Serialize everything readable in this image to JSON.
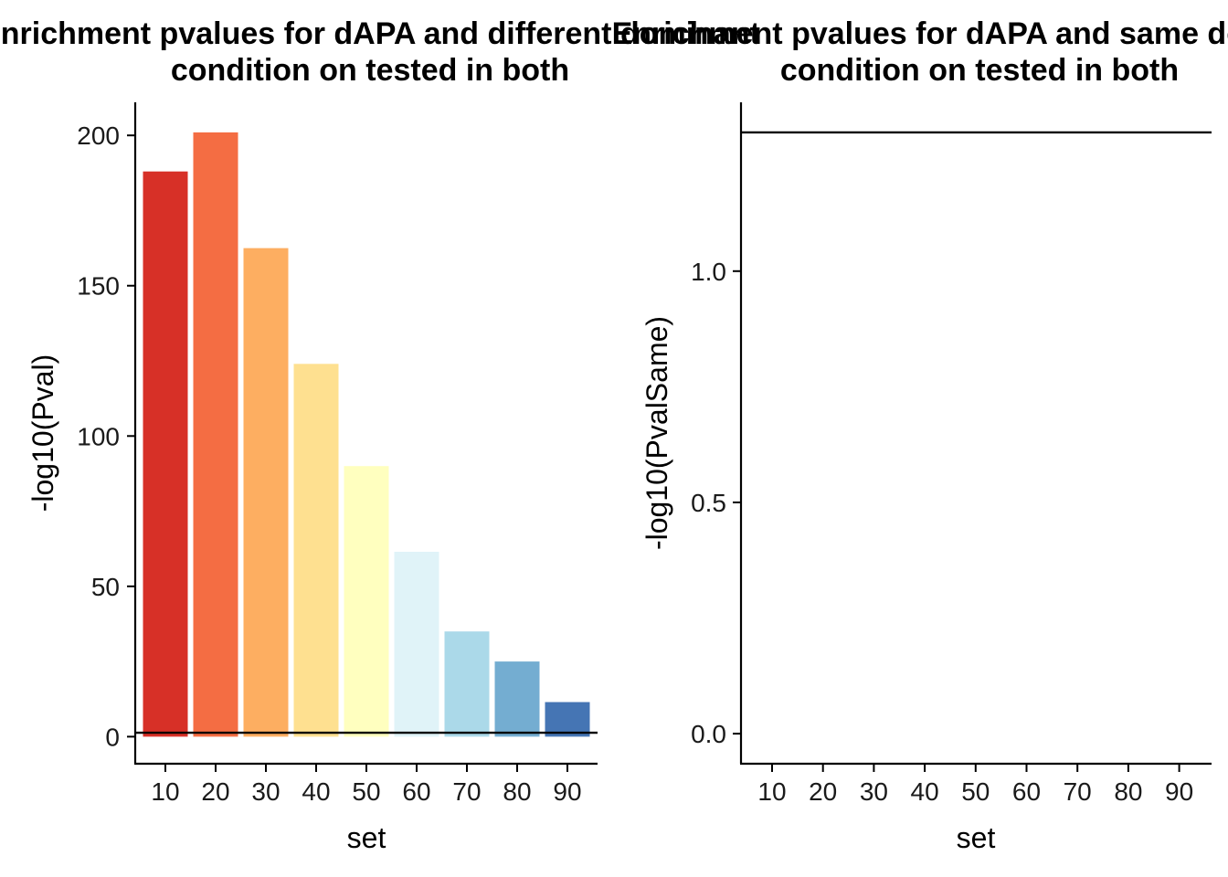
{
  "chart_data": [
    {
      "type": "bar",
      "title_line1": "Enrichment pvalues for dAPA and different dominant",
      "title_line2": "condition on tested in both",
      "xlabel": "set",
      "ylabel": "-log10(Pval)",
      "categories": [
        "10",
        "20",
        "30",
        "40",
        "50",
        "60",
        "70",
        "80",
        "90"
      ],
      "values": [
        188,
        201,
        162.5,
        124,
        90,
        61.5,
        35,
        25,
        11.5
      ],
      "colors": [
        "#D73027",
        "#F46D43",
        "#FDAE61",
        "#FEE090",
        "#FFFFBF",
        "#E0F3F8",
        "#ABD9E9",
        "#74ADD1",
        "#4575B4"
      ],
      "ylim": [
        -9,
        211
      ],
      "yticks": [
        0,
        50,
        100,
        150,
        200
      ],
      "ytick_labels": [
        "0",
        "50",
        "100",
        "150",
        "200"
      ],
      "hline": 1.3,
      "grid": false,
      "legend": "none"
    },
    {
      "type": "bar",
      "title_line1": "Enrichment pvalues for dAPA and same dominant",
      "title_line2": "condition on tested in both",
      "xlabel": "set",
      "ylabel": "-log10(PvalSame)",
      "categories": [
        "10",
        "20",
        "30",
        "40",
        "50",
        "60",
        "70",
        "80",
        "90"
      ],
      "values": [
        0,
        0,
        0,
        0,
        0,
        0,
        0,
        0,
        0
      ],
      "ylim": [
        -0.065,
        1.365
      ],
      "yticks": [
        0,
        0.5,
        1.0
      ],
      "ytick_labels": [
        "0.0",
        "0.5",
        "1.0"
      ],
      "hline": 1.3,
      "grid": false,
      "legend": "none"
    }
  ]
}
